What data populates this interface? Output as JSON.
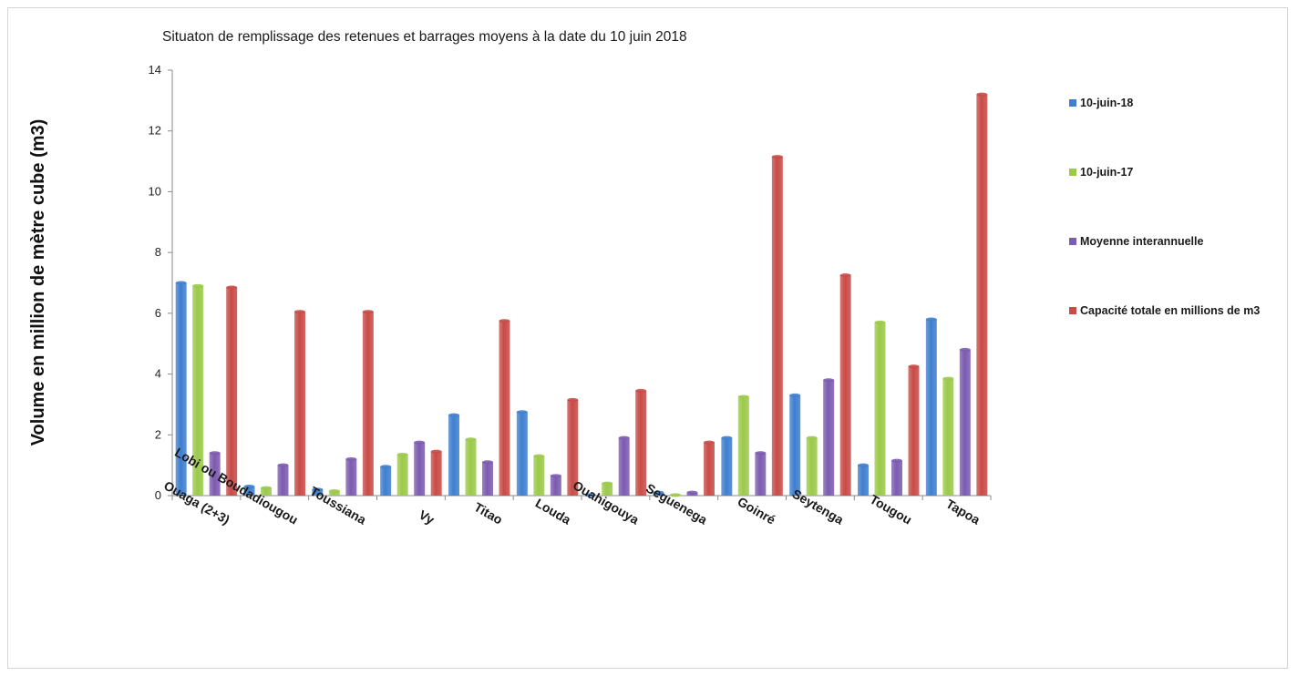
{
  "chart_data": {
    "type": "bar",
    "title": "Situaton de remplissage des retenues et barrages moyens à la date du 10 juin 2018",
    "xlabel": "",
    "ylabel": "Volume en million de mètre cube (m3)",
    "ylim": [
      0,
      14
    ],
    "yticks": [
      0,
      2,
      4,
      6,
      8,
      10,
      12,
      14
    ],
    "grid": false,
    "legend_position": "right",
    "categories": [
      "Ouaga (2+3)",
      "Lobi ou Boudadiougou",
      "Toussiana",
      "Vy",
      "Titao",
      "Louda",
      "Ouahigouya",
      "Seguenega",
      "Goinré",
      "Seytenga",
      "Tougou",
      "Tapoa"
    ],
    "series": [
      {
        "name": "10-juin-18",
        "color": "#3f7fcf",
        "values": [
          7.0,
          0.3,
          0.2,
          0.95,
          2.65,
          2.75,
          0.02,
          0.1,
          1.9,
          3.3,
          1.0,
          5.8
        ]
      },
      {
        "name": "10-juin-17",
        "color": "#9bc94a",
        "values": [
          6.9,
          0.25,
          0.15,
          1.35,
          1.85,
          1.3,
          0.4,
          0.02,
          3.25,
          1.9,
          5.7,
          3.85
        ]
      },
      {
        "name": "Moyenne interannuelle",
        "color": "#7c5bb0",
        "values": [
          1.4,
          1.0,
          1.2,
          1.75,
          1.1,
          0.65,
          1.9,
          0.1,
          1.4,
          3.8,
          1.15,
          4.8
        ]
      },
      {
        "name": "Capacité totale en millions de m3",
        "color": "#c84b47",
        "values": [
          6.85,
          6.05,
          6.05,
          1.45,
          5.75,
          3.15,
          3.45,
          1.75,
          11.15,
          7.25,
          4.25,
          13.2
        ]
      }
    ]
  }
}
